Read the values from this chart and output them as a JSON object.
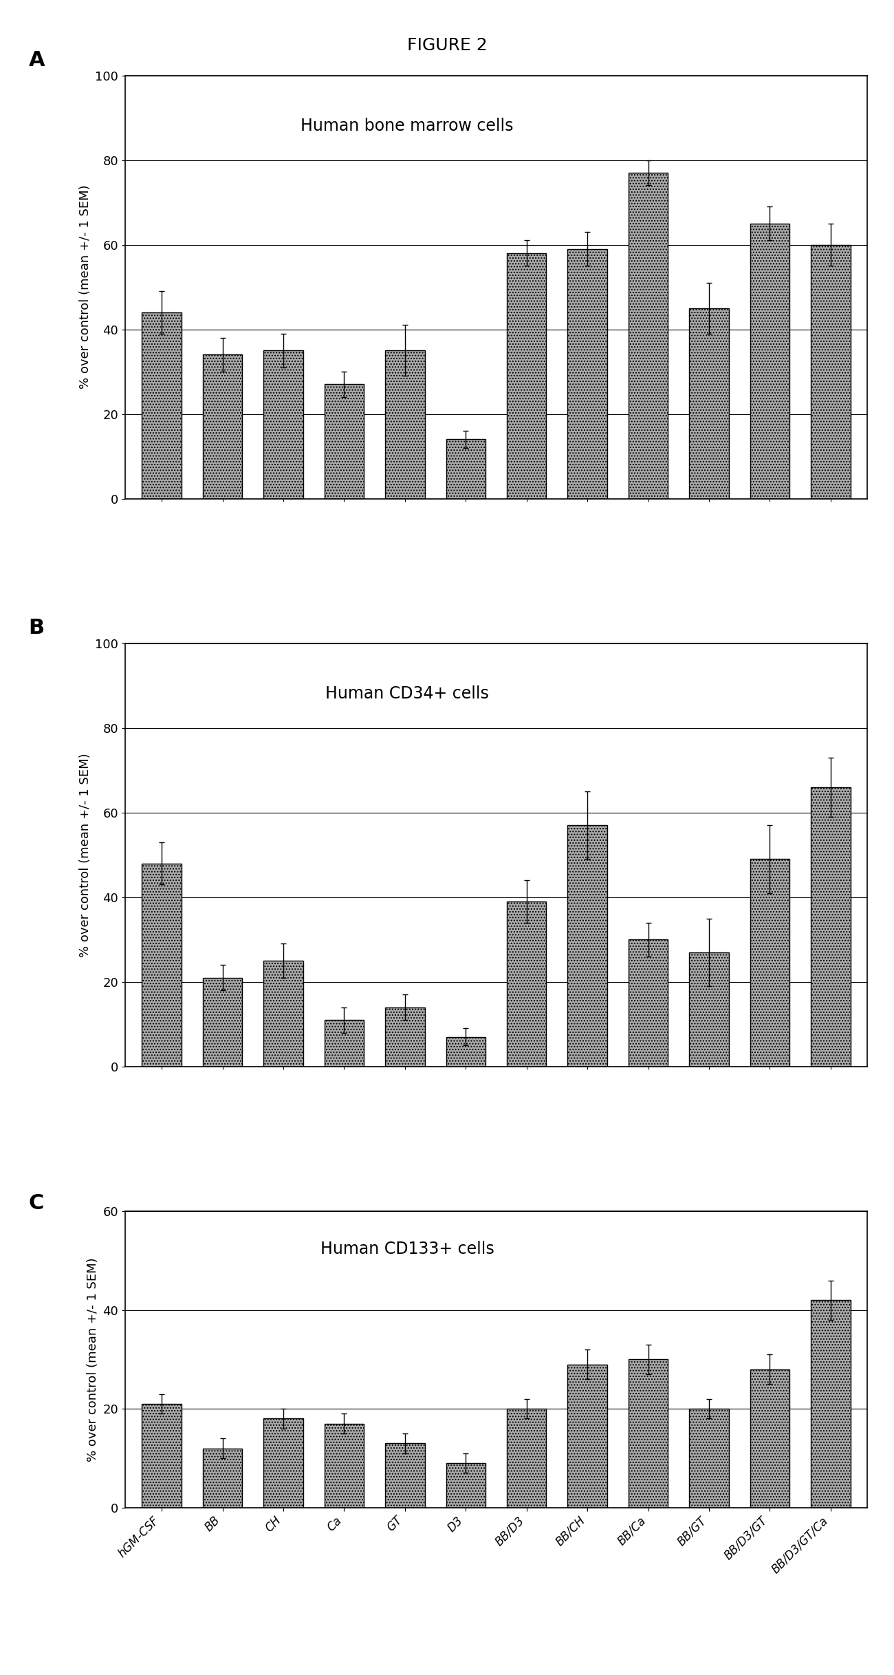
{
  "figure_title": "FIGURE 2",
  "panels": [
    {
      "label": "A",
      "title": "Human bone marrow cells",
      "ylim": [
        0,
        100
      ],
      "yticks": [
        0,
        20,
        40,
        60,
        80,
        100
      ],
      "ylabel": "% over control (mean +/- 1 SEM)",
      "categories": [
        "hGM-CSF",
        "BB",
        "CH",
        "Ca",
        "GT",
        "D3",
        "BB/D3",
        "BB/CH",
        "BB/Ca",
        "BB/GT",
        "BB/D3/GT",
        "BB/D3/GT/Ca"
      ],
      "values": [
        44,
        34,
        35,
        27,
        35,
        14,
        58,
        59,
        77,
        45,
        65,
        60
      ],
      "errors": [
        5,
        4,
        4,
        3,
        6,
        2,
        3,
        4,
        3,
        6,
        4,
        5
      ]
    },
    {
      "label": "B",
      "title": "Human CD34+ cells",
      "ylim": [
        0,
        100
      ],
      "yticks": [
        0,
        20,
        40,
        60,
        80,
        100
      ],
      "ylabel": "% over control (mean +/- 1 SEM)",
      "categories": [
        "hGM-CSF",
        "BB",
        "CH",
        "Ca",
        "GT",
        "D3",
        "BB/D3",
        "BB/CH",
        "BB/Ca",
        "BB/GT",
        "BB/D3/GT",
        "BB/D3/GT/Ca"
      ],
      "values": [
        48,
        21,
        25,
        11,
        14,
        7,
        39,
        57,
        30,
        27,
        49,
        66
      ],
      "errors": [
        5,
        3,
        4,
        3,
        3,
        2,
        5,
        8,
        4,
        8,
        8,
        7
      ]
    },
    {
      "label": "C",
      "title": "Human CD133+ cells",
      "ylim": [
        0,
        60
      ],
      "yticks": [
        0,
        20,
        40,
        60
      ],
      "ylabel": "% over control (mean +/- 1 SEM)",
      "categories": [
        "hGM-CSF",
        "BB",
        "CH",
        "Ca",
        "GT",
        "D3",
        "BB/D3",
        "BB/CH",
        "BB/Ca",
        "BB/GT",
        "BB/D3/GT",
        "BB/D3/GT/Ca"
      ],
      "values": [
        21,
        12,
        18,
        17,
        13,
        9,
        20,
        29,
        30,
        20,
        28,
        42
      ],
      "errors": [
        2,
        2,
        2,
        2,
        2,
        2,
        2,
        3,
        3,
        2,
        3,
        4
      ]
    }
  ],
  "bar_facecolor": "#aaaaaa",
  "bar_edgecolor": "#000000",
  "bar_hatch": "....",
  "background_color": "#ffffff",
  "title_fontsize": 18,
  "label_fontsize": 22,
  "ylabel_fontsize": 13,
  "tick_fontsize": 13,
  "panel_title_fontsize": 17,
  "xtick_fontsize": 12
}
